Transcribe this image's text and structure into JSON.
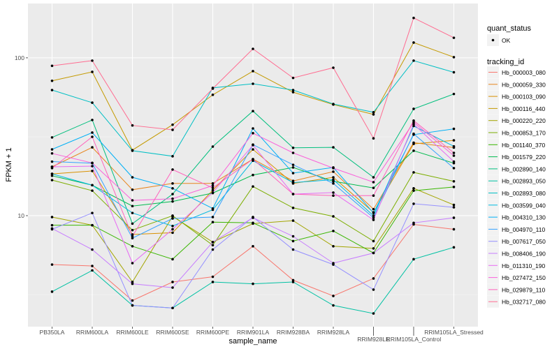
{
  "chart_data": {
    "type": "line",
    "xlabel": "sample_name",
    "ylabel": "FPKM + 1",
    "y_scale": "log10",
    "ylim": [
      1.98,
      221
    ],
    "y_ticks": [
      {
        "value": 10,
        "label": "10"
      },
      {
        "value": 100,
        "label": "100"
      }
    ],
    "grid": true,
    "legend_position": "right",
    "categories": [
      "PB350LA",
      "RRIM600LA",
      "RRIM600LE",
      "RRIM600SE",
      "RRIM600PE",
      "RRIM901LA",
      "RRIM928BA",
      "RRIM928LA",
      "RRIM928LE",
      "RRIM105LA_Control",
      "RRIM105LA_Stressed"
    ],
    "shape_legend": {
      "title": "quant_status",
      "items": [
        "OK"
      ]
    },
    "color_legend_title": "tracking_id",
    "series": [
      {
        "name": "Hb_000003_080",
        "color": "#F8766D",
        "values": [
          4.9,
          4.8,
          2.9,
          3.8,
          4.1,
          6.4,
          3.9,
          3.1,
          4.0,
          8.8,
          8.2
        ]
      },
      {
        "name": "Hb_000059_330",
        "color": "#E7851E",
        "values": [
          20.4,
          27.1,
          14.6,
          16.0,
          16.0,
          22.8,
          16.6,
          19.0,
          11.0,
          29.0,
          27.0
        ]
      },
      {
        "name": "Hb_000103_090",
        "color": "#D89000",
        "values": [
          18.4,
          19.2,
          7.6,
          7.8,
          14.5,
          26.3,
          16.0,
          17.5,
          10.5,
          28.5,
          30.0
        ]
      },
      {
        "name": "Hb_000116_440",
        "color": "#C49A00",
        "values": [
          71.5,
          81.5,
          26.0,
          37.7,
          58.3,
          82.4,
          60.6,
          50.6,
          43.8,
          125,
          101
        ]
      },
      {
        "name": "Hb_000220_220",
        "color": "#A3A500",
        "values": [
          9.8,
          8.7,
          3.8,
          9.9,
          6.8,
          8.9,
          9.3,
          6.4,
          6.2,
          14.9,
          11.7
        ]
      },
      {
        "name": "Hb_000853_170",
        "color": "#7CAE00",
        "values": [
          16.8,
          14.4,
          8.1,
          10.0,
          6.5,
          15.3,
          11.2,
          9.9,
          6.9,
          18.8,
          16.5
        ]
      },
      {
        "name": "Hb_001140_370",
        "color": "#39B600",
        "values": [
          8.7,
          8.7,
          6.4,
          5.3,
          9.1,
          9.0,
          6.9,
          8.0,
          5.8,
          14.4,
          15.2
        ]
      },
      {
        "name": "Hb_001579_220",
        "color": "#00BB4E",
        "values": [
          17.9,
          15.6,
          11.5,
          12.3,
          13.9,
          18.1,
          20.2,
          16.5,
          15.0,
          25.8,
          21.5
        ]
      },
      {
        "name": "Hb_002890_140",
        "color": "#00BF7D",
        "values": [
          31.3,
          40.4,
          8.9,
          13.7,
          27.4,
          46.0,
          26.9,
          27.1,
          17.5,
          47.5,
          59.0
        ]
      },
      {
        "name": "Hb_002893_050",
        "color": "#00C1A3",
        "values": [
          3.3,
          4.5,
          2.7,
          2.6,
          3.8,
          3.7,
          3.8,
          2.7,
          2.4,
          5.3,
          6.3
        ]
      },
      {
        "name": "Hb_002893_080",
        "color": "#00BFC4",
        "values": [
          62.5,
          52.0,
          25.8,
          23.8,
          64.5,
          68.5,
          62.5,
          51.0,
          45.2,
          96.0,
          81.0
        ]
      },
      {
        "name": "Hb_003599_040",
        "color": "#00BAE0",
        "values": [
          18.4,
          15.6,
          10.4,
          8.6,
          10.9,
          22.3,
          16.2,
          16.9,
          10.0,
          37.0,
          27.5
        ]
      },
      {
        "name": "Hb_004310_130",
        "color": "#00B0F6",
        "values": [
          26.3,
          33.6,
          17.5,
          14.9,
          11.1,
          35.7,
          18.6,
          20.2,
          10.4,
          32.6,
          35.5
        ]
      },
      {
        "name": "Hb_004970_110",
        "color": "#35A2FF",
        "values": [
          22.0,
          21.5,
          7.2,
          9.6,
          9.8,
          28.2,
          21.0,
          16.0,
          9.7,
          33.0,
          20.0
        ]
      },
      {
        "name": "Hb_007617_050",
        "color": "#9590FF",
        "values": [
          8.2,
          10.4,
          2.7,
          2.6,
          6.1,
          9.8,
          6.1,
          4.9,
          3.4,
          11.9,
          11.3
        ]
      },
      {
        "name": "Hb_008406_190",
        "color": "#C77CFF",
        "values": [
          8.3,
          6.1,
          3.7,
          3.5,
          6.8,
          9.7,
          7.4,
          5.0,
          5.8,
          9.0,
          9.7
        ]
      },
      {
        "name": "Hb_011310_190",
        "color": "#E76BF3",
        "values": [
          20.4,
          20.6,
          5.0,
          8.2,
          14.0,
          28.0,
          13.7,
          14.0,
          9.4,
          38.0,
          22.0
        ]
      },
      {
        "name": "Hb_027472_150",
        "color": "#FA62DB",
        "values": [
          24.8,
          21.6,
          12.5,
          12.8,
          15.5,
          33.3,
          25.0,
          20.0,
          16.3,
          39.0,
          24.0
        ]
      },
      {
        "name": "Hb_029879_110",
        "color": "#FF62BC",
        "values": [
          20.0,
          31.6,
          7.4,
          19.6,
          15.0,
          22.8,
          13.7,
          13.4,
          13.4,
          40.0,
          25.0
        ]
      },
      {
        "name": "Hb_032717_080",
        "color": "#FF6C91",
        "values": [
          89,
          96,
          37.3,
          35.0,
          63.8,
          114,
          74.6,
          86.6,
          30.9,
          179,
          134
        ]
      }
    ]
  }
}
